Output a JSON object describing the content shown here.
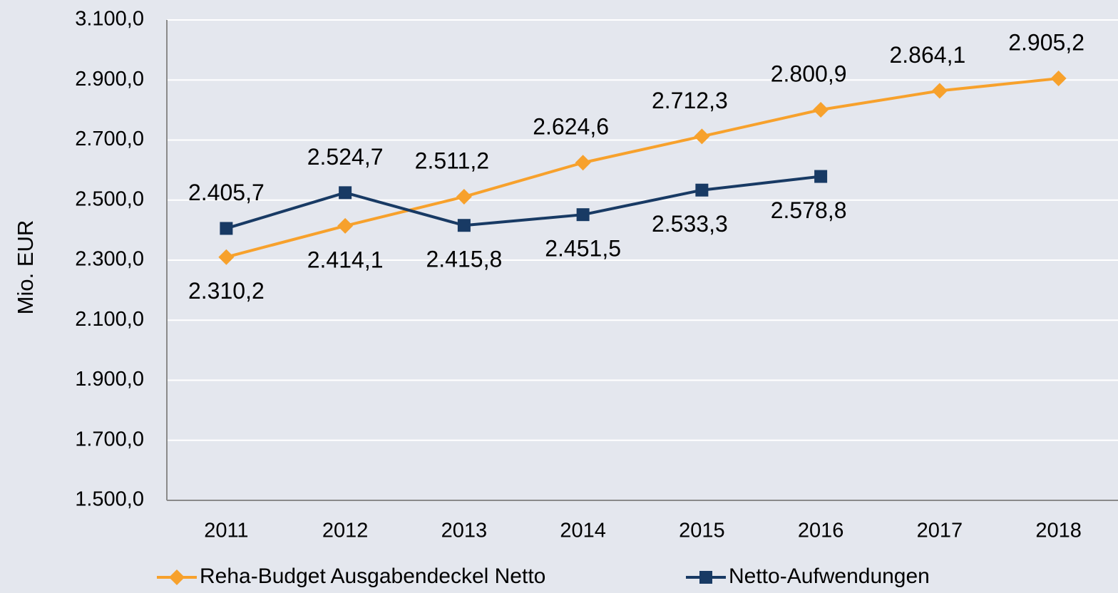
{
  "chart_data": {
    "type": "line",
    "y_label": "Mio. EUR",
    "categories": [
      "2011",
      "2012",
      "2013",
      "2014",
      "2015",
      "2016",
      "2017",
      "2018"
    ],
    "series": [
      {
        "name": "Reha-Budget Ausgabendeckel Netto",
        "color": "#f7a12c",
        "values": [
          2310.2,
          2414.1,
          2511.2,
          2624.6,
          2712.3,
          2800.9,
          2864.1,
          2905.2
        ],
        "value_labels": [
          "2.310,2",
          "2.414,1",
          "2.511,2",
          "2.624,6",
          "2.712,3",
          "2.800,9",
          "2.864,1",
          "2.905,2"
        ]
      },
      {
        "name": "Netto-Aufwendungen",
        "color": "#183a64",
        "values": [
          2405.7,
          2524.7,
          2415.8,
          2451.5,
          2533.3,
          2578.8,
          null,
          null
        ],
        "value_labels": [
          "2.405,7",
          "2.524,7",
          "2.415,8",
          "2.451,5",
          "2.533,3",
          "2.578,8",
          null,
          null
        ]
      }
    ],
    "ylim": [
      1500,
      3100
    ],
    "yticks": [
      {
        "value": 1500,
        "label": "1.500,0"
      },
      {
        "value": 1700,
        "label": "1.700,0"
      },
      {
        "value": 1900,
        "label": "1.900,0"
      },
      {
        "value": 2100,
        "label": "2.100,0"
      },
      {
        "value": 2300,
        "label": "2.300,0"
      },
      {
        "value": 2500,
        "label": "2.500,0"
      },
      {
        "value": 2700,
        "label": "2.700,0"
      },
      {
        "value": 2900,
        "label": "2.900,0"
      },
      {
        "value": 3100,
        "label": "3.100,0"
      }
    ],
    "grid": true,
    "legend": "bottom"
  }
}
